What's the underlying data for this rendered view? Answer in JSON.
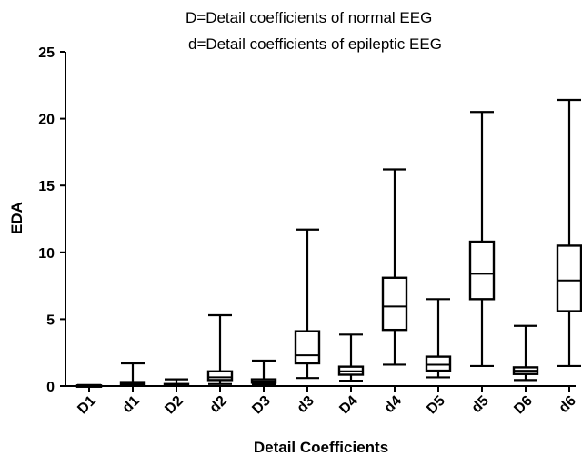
{
  "chart_data": {
    "type": "boxplot",
    "annotation": [
      "D=Detail coefficients of normal EEG",
      "d=Detail coefficients of epileptic EEG"
    ],
    "xlabel": "Detail Coefficients",
    "ylabel": "EDA",
    "ylim": [
      0,
      25
    ],
    "yticks": [
      "0",
      "5",
      "10",
      "15",
      "20",
      "25"
    ],
    "grid": false,
    "categories": [
      "D1",
      "d1",
      "D2",
      "d2",
      "D3",
      "d3",
      "D4",
      "d4",
      "D5",
      "d5",
      "D6",
      "d6"
    ],
    "boxes": [
      {
        "min": 0.02,
        "q1": 0.03,
        "median": 0.04,
        "q3": 0.05,
        "max": 0.08
      },
      {
        "min": 0.05,
        "q1": 0.1,
        "median": 0.18,
        "q3": 0.3,
        "max": 1.7
      },
      {
        "min": 0.03,
        "q1": 0.06,
        "median": 0.1,
        "q3": 0.15,
        "max": 0.5
      },
      {
        "min": 0.15,
        "q1": 0.45,
        "median": 0.65,
        "q3": 1.1,
        "max": 5.3
      },
      {
        "min": 0.1,
        "q1": 0.25,
        "median": 0.35,
        "q3": 0.5,
        "max": 1.9
      },
      {
        "min": 0.6,
        "q1": 1.7,
        "median": 2.3,
        "q3": 4.1,
        "max": 11.7
      },
      {
        "min": 0.4,
        "q1": 0.85,
        "median": 1.1,
        "q3": 1.45,
        "max": 3.85
      },
      {
        "min": 1.6,
        "q1": 4.2,
        "median": 5.95,
        "q3": 8.1,
        "max": 16.2
      },
      {
        "min": 0.65,
        "q1": 1.15,
        "median": 1.6,
        "q3": 2.2,
        "max": 6.5
      },
      {
        "min": 1.5,
        "q1": 6.5,
        "median": 8.4,
        "q3": 10.8,
        "max": 20.5
      },
      {
        "min": 0.45,
        "q1": 0.9,
        "median": 1.15,
        "q3": 1.4,
        "max": 4.5
      },
      {
        "min": 1.5,
        "q1": 5.6,
        "median": 7.9,
        "q3": 10.5,
        "max": 21.4
      }
    ]
  }
}
